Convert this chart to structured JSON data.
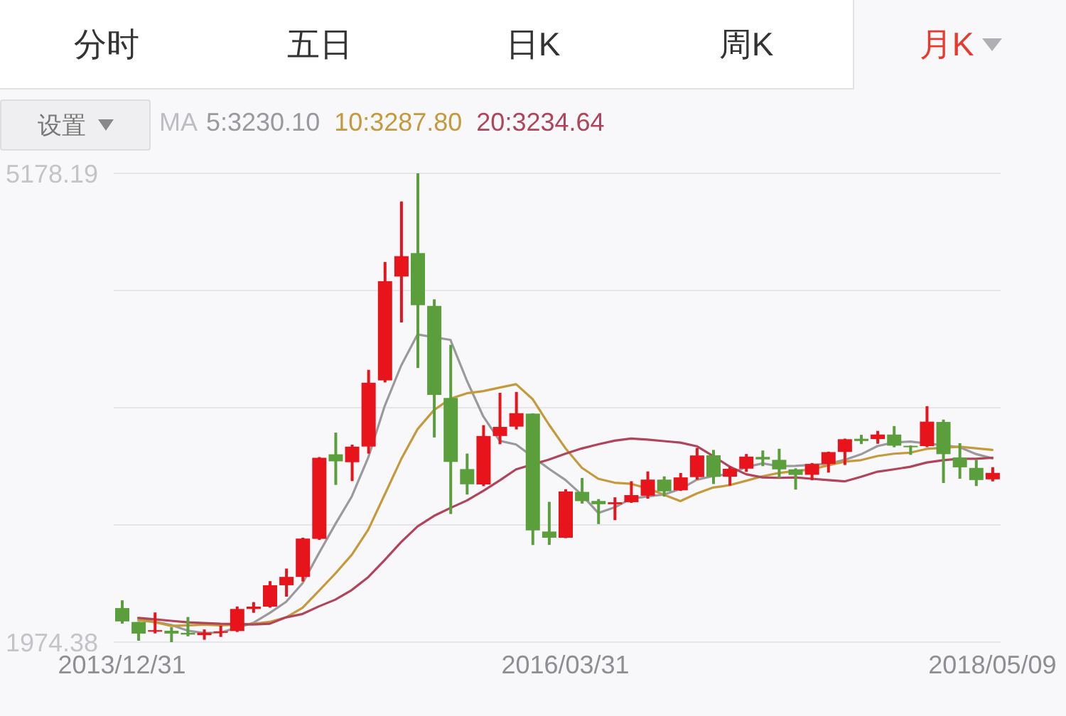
{
  "chart_data": {
    "type": "candlestick",
    "annotations": [
      "分时",
      "五日",
      "日K",
      "周K",
      "月K",
      "设置"
    ],
    "legend_title": "MA",
    "legend": "top left",
    "categories": [
      "2013/12/31",
      null,
      null,
      null,
      null,
      null,
      null,
      null,
      null,
      null,
      null,
      null,
      null,
      null,
      null,
      null,
      null,
      null,
      null,
      null,
      null,
      null,
      null,
      null,
      null,
      null,
      null,
      "2016/03/31",
      null,
      null,
      null,
      null,
      null,
      null,
      null,
      null,
      null,
      null,
      null,
      null,
      null,
      null,
      null,
      null,
      null,
      null,
      null,
      null,
      null,
      null,
      null,
      null,
      null,
      "2018/05/09"
    ],
    "ohlc": [
      [
        2207,
        2260,
        2101,
        2116
      ],
      [
        2112,
        2113,
        1984,
        2033
      ],
      [
        2046,
        2177,
        2034,
        2056
      ],
      [
        2052,
        2076,
        1974.38,
        2033
      ],
      [
        2038,
        2146,
        2014,
        2026
      ],
      [
        2022,
        2061,
        1991,
        2039
      ],
      [
        2040,
        2087,
        2010,
        2048
      ],
      [
        2050,
        2218,
        2044,
        2201
      ],
      [
        2201,
        2248,
        2175,
        2217
      ],
      [
        2217,
        2391,
        2210,
        2363
      ],
      [
        2363,
        2477,
        2285,
        2420
      ],
      [
        2420,
        2688,
        2389,
        2682
      ],
      [
        2680,
        3239,
        2673,
        3234
      ],
      [
        3258,
        3406,
        3049,
        3210
      ],
      [
        3204,
        3324,
        3075,
        3310
      ],
      [
        3311,
        3835,
        3263,
        3747
      ],
      [
        3763,
        4572,
        3749,
        4441
      ],
      [
        4473,
        4986,
        4159,
        4612
      ],
      [
        4633,
        5178.19,
        3848,
        4277
      ],
      [
        4272,
        4317,
        3373,
        3664
      ],
      [
        3643,
        4006,
        2850,
        3206
      ],
      [
        3157,
        3263,
        2983,
        3053
      ],
      [
        3052,
        3457,
        3040,
        3383
      ],
      [
        3383,
        3678,
        3327,
        3445
      ],
      [
        3447,
        3684,
        3428,
        3539
      ],
      [
        3536,
        3538,
        2638,
        2738
      ],
      [
        2730,
        2933,
        2639,
        2688
      ],
      [
        2688,
        3019,
        2685,
        3004
      ],
      [
        3001,
        3096,
        2921,
        2938
      ],
      [
        2939,
        2952,
        2781,
        2917
      ],
      [
        2917,
        2964,
        2808,
        2930
      ],
      [
        2931,
        3074,
        2926,
        2979
      ],
      [
        2975,
        3141,
        2955,
        3085
      ],
      [
        3085,
        3107,
        2969,
        3005
      ],
      [
        3012,
        3130,
        3008,
        3100
      ],
      [
        3102,
        3301,
        3085,
        3250
      ],
      [
        3251,
        3288,
        3055,
        3104
      ],
      [
        3105,
        3174,
        3044,
        3159
      ],
      [
        3160,
        3260,
        3138,
        3242
      ],
      [
        3240,
        3284,
        3177,
        3223
      ],
      [
        3220,
        3296,
        3095,
        3155
      ],
      [
        3155,
        3162,
        3017,
        3117
      ],
      [
        3118,
        3198,
        3081,
        3192
      ],
      [
        3192,
        3276,
        3133,
        3273
      ],
      [
        3274,
        3365,
        3185,
        3361
      ],
      [
        3364,
        3391,
        3328,
        3349
      ],
      [
        3362,
        3418,
        3330,
        3393
      ],
      [
        3393,
        3451,
        3306,
        3317
      ],
      [
        3316,
        3318,
        3254,
        3307
      ],
      [
        3314,
        3587,
        3307,
        3481
      ],
      [
        3479,
        3495,
        3062,
        3259
      ],
      [
        3236,
        3334,
        3091,
        3169
      ],
      [
        3165,
        3220,
        3041,
        3082
      ],
      [
        3087,
        3170,
        3073,
        3131
      ]
    ],
    "colors": [
      "#5b9e3c",
      "#5b9e3c",
      "#e8141b",
      "#5b9e3c",
      "#5b9e3c",
      "#e8141b",
      "#e8141b",
      "#e8141b",
      "#e8141b",
      "#e8141b",
      "#e8141b",
      "#e8141b",
      "#e8141b",
      "#5b9e3c",
      "#e8141b",
      "#e8141b",
      "#e8141b",
      "#e8141b",
      "#5b9e3c",
      "#5b9e3c",
      "#5b9e3c",
      "#5b9e3c",
      "#e8141b",
      "#e8141b",
      "#e8141b",
      "#5b9e3c",
      "#5b9e3c",
      "#e8141b",
      "#5b9e3c",
      "#5b9e3c",
      "#e8141b",
      "#e8141b",
      "#e8141b",
      "#5b9e3c",
      "#e8141b",
      "#e8141b",
      "#5b9e3c",
      "#e8141b",
      "#e8141b",
      "#5b9e3c",
      "#5b9e3c",
      "#5b9e3c",
      "#e8141b",
      "#e8141b",
      "#e8141b",
      "#5b9e3c",
      "#e8141b",
      "#5b9e3c",
      "#5b9e3c",
      "#e8141b",
      "#5b9e3c",
      "#5b9e3c",
      "#5b9e3c",
      "#e8141b"
    ],
    "series": [
      {
        "name": "5:3230.10",
        "type": "line",
        "color": "#9a9a9e",
        "values": [
          null,
          2137,
          2113,
          2092,
          2053,
          2037,
          2040,
          null,
          2106,
          2174,
          2250,
          2377,
          2583,
          2782,
          2971,
          3237,
          3588,
          3864,
          4077,
          null,
          4040,
          3762,
          3517,
          3350,
          3325,
          null,
          3159,
          3083,
          2981,
          2857,
          2895,
          2954,
          2970,
          2983,
          3020,
          3084,
          3109,
          3124,
          3171,
          3196,
          3177,
          3179,
          3186,
          3192,
          3220,
          3258,
          3314,
          3339,
          3345,
          null,
          null,
          3307,
          3260,
          3230
        ]
      },
      {
        "name": "10:3287.80",
        "type": "line",
        "color": "#c49a3c",
        "values": [
          null,
          2124,
          2111,
          2085,
          2089,
          2094,
          2089,
          null,
          2099,
          2113,
          2144,
          2209,
          2326,
          2444,
          2572,
          2743,
          2983,
          3224,
          3430,
          3560,
          3638,
          3675,
          3690,
          3714,
          3737,
          3636,
          3461,
          3300,
          3166,
          3091,
          3064,
          3056,
          3026,
          2982,
          2938,
          2990,
          3031,
          3047,
          3077,
          3108,
          3130,
          3144,
          3155,
          3182,
          3208,
          3218,
          3246,
          3262,
          3269,
          3295,
          null,
          3310,
          3299,
          3288
        ]
      },
      {
        "name": "20:3234.64",
        "type": "line",
        "color": "#b0445a",
        "values": [
          null,
          2140,
          2130,
          2120,
          2110,
          2105,
          2100,
          null,
          2095,
          2100,
          2144,
          2167,
          2219,
          2265,
          2331,
          2419,
          2536,
          2658,
          2765,
          2837,
          2891,
          2942,
          3008,
          3079,
          3155,
          null,
          3222,
          3262,
          3298,
          3326,
          3351,
          3366,
          3358,
          3348,
          3338,
          3313,
          3246,
          3174,
          3122,
          3100,
          3097,
          3100,
          3091,
          3082,
          3073,
          3104,
          3139,
          3155,
          3173,
          3202,
          3218,
          3227,
          3227,
          3235
        ]
      }
    ],
    "ylim": [
      1974.38,
      5178.19
    ],
    "yticks": [
      1974.38,
      {
        "value": 2775.33,
        "label": null
      },
      {
        "value": 3576.29,
        "label": null
      },
      {
        "value": 4377.24,
        "label": null
      },
      5178.19
    ],
    "grid": "y",
    "marker": "none",
    "line_style": "solid"
  }
}
